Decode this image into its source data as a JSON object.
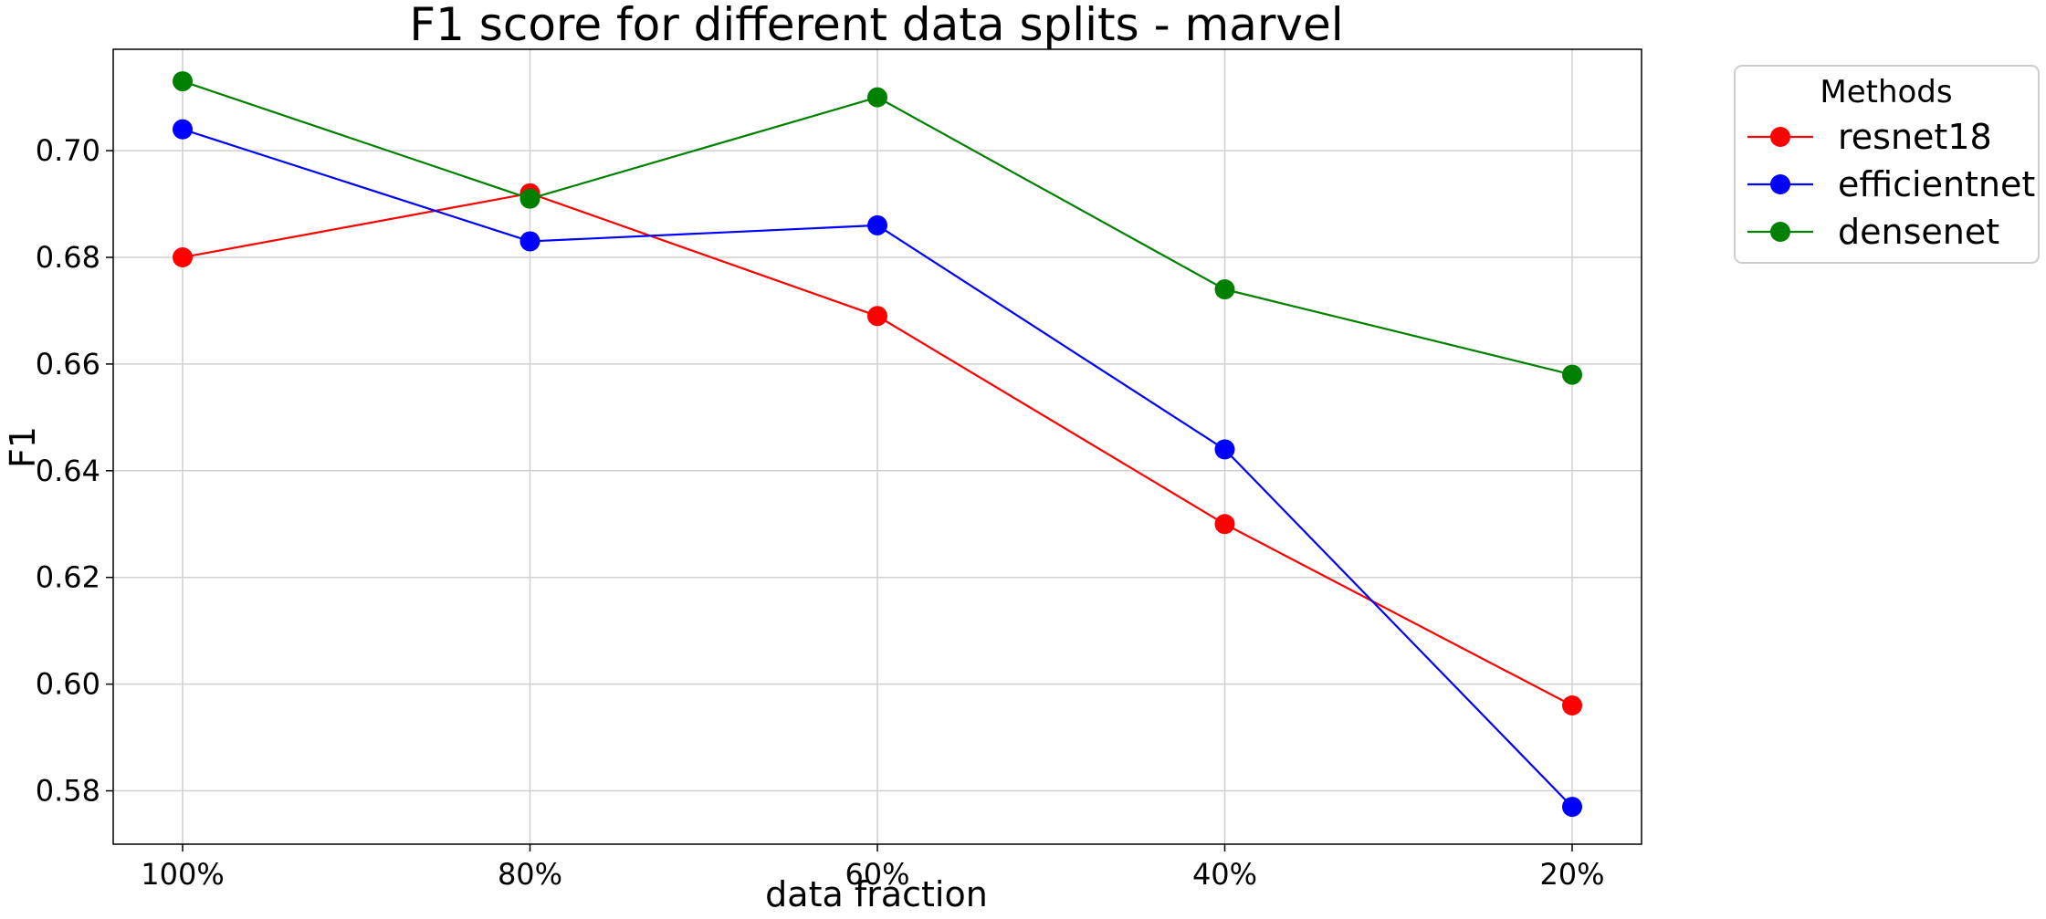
{
  "chart_data": {
    "type": "line",
    "title": "F1 score for different data splits - marvel",
    "xlabel": "data fraction",
    "ylabel": "F1",
    "categories": [
      "100%",
      "80%",
      "60%",
      "40%",
      "20%"
    ],
    "ylim": [
      0.57,
      0.719
    ],
    "yticks": [
      "0.58",
      "0.60",
      "0.62",
      "0.64",
      "0.66",
      "0.68",
      "0.70"
    ],
    "grid": true,
    "legend": {
      "title": "Methods",
      "placement": "outside-top-right"
    },
    "series": [
      {
        "name": "resnet18",
        "color": "#ff0000",
        "values": [
          0.68,
          0.692,
          0.669,
          0.63,
          0.596
        ]
      },
      {
        "name": "efficientnet",
        "color": "#0000ff",
        "values": [
          0.704,
          0.683,
          0.686,
          0.644,
          0.577
        ]
      },
      {
        "name": "densenet",
        "color": "#008000",
        "values": [
          0.713,
          0.691,
          0.71,
          0.674,
          0.658
        ]
      }
    ]
  }
}
